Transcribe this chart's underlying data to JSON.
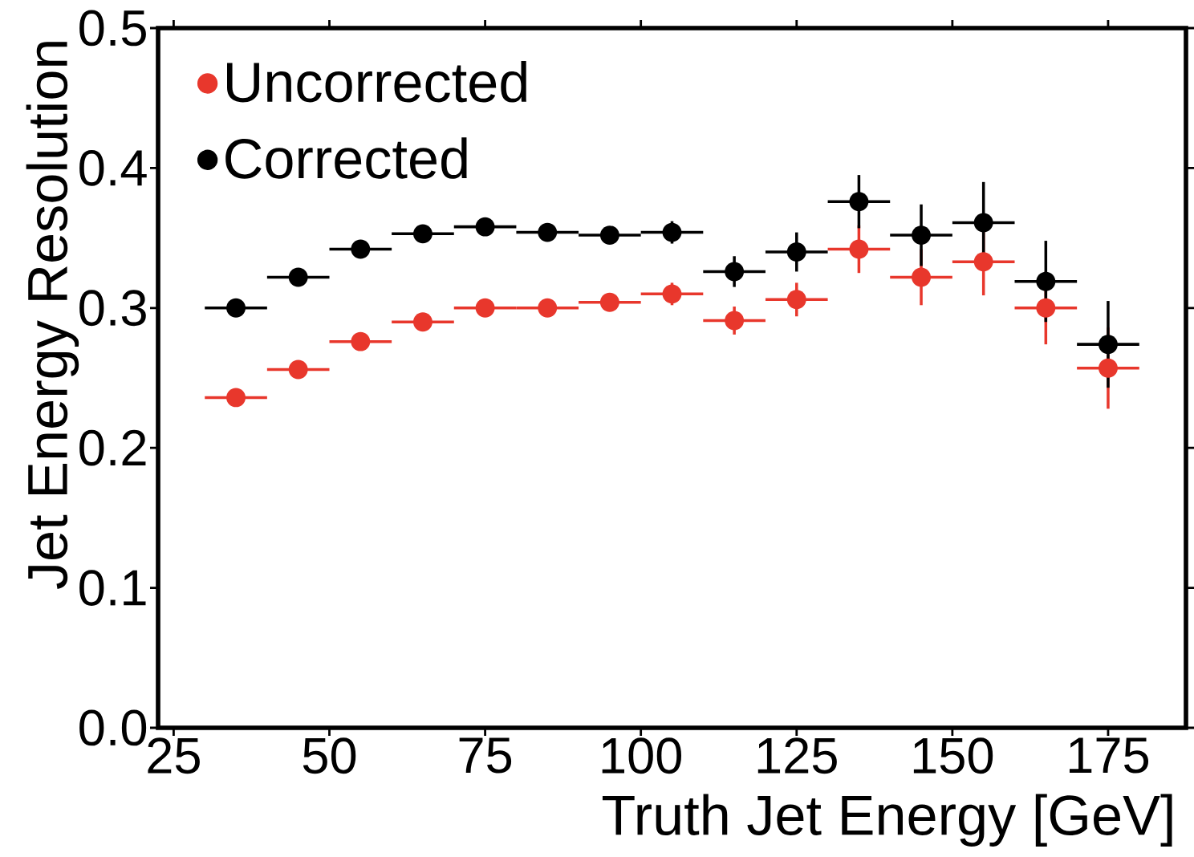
{
  "chart_data": {
    "type": "scatter",
    "xlabel": "Truth Jet Energy [GeV]",
    "ylabel": "Jet Energy Resolution",
    "x": [
      35,
      45,
      55,
      65,
      75,
      85,
      95,
      105,
      115,
      125,
      135,
      145,
      155,
      165,
      175
    ],
    "series": [
      {
        "name": "Uncorrected",
        "color": "#e8372c",
        "values": [
          0.236,
          0.256,
          0.276,
          0.29,
          0.3,
          0.3,
          0.304,
          0.31,
          0.291,
          0.306,
          0.342,
          0.322,
          0.333,
          0.3,
          0.257
        ],
        "errors": [
          0.002,
          0.002,
          0.003,
          0.003,
          0.004,
          0.004,
          0.006,
          0.008,
          0.01,
          0.012,
          0.017,
          0.02,
          0.024,
          0.026,
          0.029
        ],
        "xerrors": [
          5,
          5,
          5,
          5,
          5,
          5,
          5,
          5,
          5,
          5,
          5,
          5,
          5,
          5,
          5
        ]
      },
      {
        "name": "Corrected",
        "color": "#000000",
        "values": [
          0.3,
          0.322,
          0.342,
          0.353,
          0.358,
          0.354,
          0.352,
          0.354,
          0.326,
          0.34,
          0.376,
          0.352,
          0.361,
          0.319,
          0.274
        ],
        "errors": [
          0.002,
          0.002,
          0.003,
          0.003,
          0.004,
          0.005,
          0.006,
          0.008,
          0.011,
          0.014,
          0.019,
          0.022,
          0.029,
          0.029,
          0.031
        ],
        "xerrors": [
          5,
          5,
          5,
          5,
          5,
          5,
          5,
          5,
          5,
          5,
          5,
          5,
          5,
          5,
          5
        ]
      }
    ],
    "xlim": [
      22.5,
      187.5
    ],
    "ylim": [
      0,
      0.5
    ],
    "xticks": [
      25,
      50,
      75,
      100,
      125,
      150,
      175
    ],
    "yticks": [
      {
        "value": 0,
        "label": "0.0"
      },
      0.1,
      0.2,
      0.3,
      0.4,
      0.5
    ],
    "marker": "circle",
    "legend": "top left",
    "grid": false
  }
}
